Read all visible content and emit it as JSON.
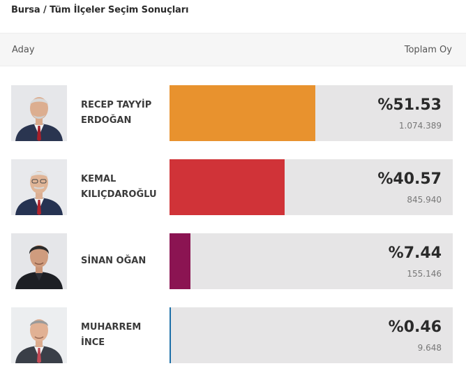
{
  "title": "Bursa / Tüm İlçeler Seçim Sonuçları",
  "header": {
    "candidate_label": "Aday",
    "total_votes_label": "Toplam Oy"
  },
  "candidates": [
    {
      "name": "RECEP TAYYİP\nERDOĞAN",
      "percent_label": "%51.53",
      "percent": 51.53,
      "votes": "1.074.389",
      "color": "#e8922e"
    },
    {
      "name": "KEMAL\nKILIÇDAROĞLU",
      "percent_label": "%40.57",
      "percent": 40.57,
      "votes": "845.940",
      "color": "#d03338"
    },
    {
      "name": "SİNAN OĞAN",
      "percent_label": "%7.44",
      "percent": 7.44,
      "votes": "155.146",
      "color": "#8b1452"
    },
    {
      "name": "MUHARREM\nİNCE",
      "percent_label": "%0.46",
      "percent": 0.46,
      "votes": "9.648",
      "color": "#1b6fa8"
    }
  ]
}
